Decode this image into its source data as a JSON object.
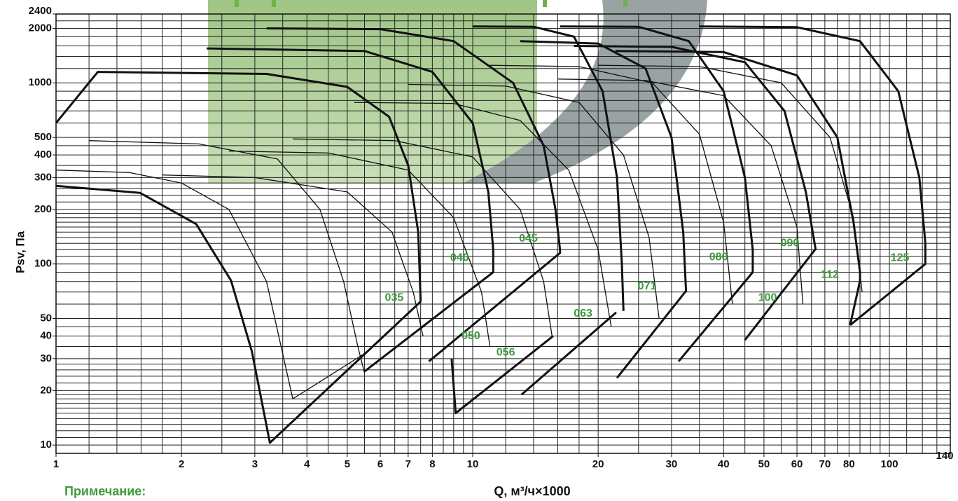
{
  "chart_data": {
    "type": "line",
    "x_label": "Q, м³/ч×1000",
    "y_label": "Psv, Па",
    "note": "Примечание:",
    "log_x": true,
    "log_y": true,
    "grid": true,
    "xlim": [
      1,
      140
    ],
    "ylim": [
      9,
      2400
    ],
    "xticks": [
      1,
      2,
      3,
      4,
      5,
      6,
      7,
      8,
      10,
      20,
      30,
      40,
      50,
      60,
      70,
      80,
      100,
      140
    ],
    "yticks": [
      10,
      20,
      30,
      40,
      50,
      100,
      200,
      300,
      400,
      500,
      1000,
      2000,
      2400
    ],
    "x_grid": [
      1,
      1.2,
      1.4,
      1.6,
      1.8,
      2,
      2.5,
      3,
      3.5,
      4,
      4.5,
      5,
      5.5,
      6,
      6.5,
      7,
      7.5,
      8,
      8.5,
      9,
      9.5,
      10,
      12,
      14,
      16,
      18,
      20,
      25,
      30,
      35,
      40,
      45,
      50,
      55,
      60,
      65,
      70,
      75,
      80,
      85,
      90,
      95,
      100,
      110,
      120,
      130,
      140
    ],
    "y_grid": [
      10,
      11,
      12,
      13,
      14,
      15,
      16,
      17,
      18,
      19,
      20,
      22,
      24,
      26,
      28,
      30,
      35,
      40,
      45,
      50,
      60,
      70,
      80,
      90,
      100,
      110,
      120,
      130,
      140,
      150,
      160,
      170,
      180,
      190,
      200,
      220,
      240,
      260,
      280,
      300,
      350,
      400,
      450,
      500,
      600,
      700,
      800,
      900,
      1000,
      1200,
      1400,
      1600,
      1800,
      2000,
      2200,
      2400
    ],
    "line_color": "#111111",
    "label_color": "#3e9a3e",
    "series": [
      {
        "weight": "bold",
        "x": [
          1,
          1.59,
          2.17,
          2.63,
          2.95,
          3.26,
          7.5
        ],
        "y": [
          270,
          247,
          166,
          81,
          33,
          10.3,
          62
        ]
      },
      {
        "weight": "bold",
        "x": [
          1,
          1.26,
          3.2,
          5.0,
          6.3,
          7.0,
          7.4,
          7.5
        ],
        "y": [
          600,
          1150,
          1120,
          950,
          650,
          350,
          150,
          62
        ]
      },
      {
        "weight": "bold",
        "x": [
          2.3,
          5.5,
          8.0,
          10.0,
          10.9,
          11.2,
          11.2,
          5.5
        ],
        "y": [
          1550,
          1500,
          1150,
          600,
          250,
          120,
          90,
          25.5
        ]
      },
      {
        "weight": "bold",
        "x": [
          3.2,
          6.0,
          9.0,
          12.5,
          14.8,
          15.8,
          16.2,
          16.2,
          7.85
        ],
        "y": [
          2000,
          1980,
          1700,
          1000,
          450,
          200,
          120,
          115,
          29
        ]
      },
      {
        "weight": "bold",
        "x": [
          8.9,
          9.1,
          15.6
        ],
        "y": [
          30,
          15,
          40
        ]
      },
      {
        "weight": "bold",
        "x": [
          13.1,
          22.1
        ],
        "y": [
          19,
          54
        ]
      },
      {
        "weight": "bold",
        "x": [
          10,
          14,
          17.5,
          20.5,
          22.2,
          22.8,
          23
        ],
        "y": [
          2050,
          2040,
          1800,
          900,
          300,
          100,
          55
        ]
      },
      {
        "weight": "bold",
        "x": [
          13,
          20,
          26,
          30,
          32,
          32.5,
          22.2
        ],
        "y": [
          1700,
          1650,
          1200,
          500,
          150,
          71,
          23.5
        ]
      },
      {
        "weight": "bold",
        "x": [
          16.2,
          25,
          33,
          40,
          45,
          47,
          47,
          31.2
        ],
        "y": [
          2050,
          2040,
          1700,
          900,
          300,
          120,
          90,
          29
        ]
      },
      {
        "weight": "bold",
        "x": [
          17.5,
          30,
          45,
          56,
          63,
          66.5,
          45
        ],
        "y": [
          1600,
          1580,
          1300,
          700,
          250,
          121,
          38
        ]
      },
      {
        "weight": "bold",
        "x": [
          22,
          40,
          60,
          75,
          82,
          85,
          85,
          80.5
        ],
        "y": [
          1500,
          1480,
          1100,
          500,
          170,
          90,
          81,
          46
        ]
      },
      {
        "weight": "bold",
        "x": [
          35,
          60,
          85,
          105,
          118,
          122,
          122,
          80.5
        ],
        "y": [
          2050,
          2030,
          1700,
          900,
          300,
          130,
          100,
          46
        ]
      },
      {
        "weight": "thin",
        "x": [
          1,
          1.5,
          2.0,
          2.6,
          3.2,
          3.7,
          5.5
        ],
        "y": [
          330,
          320,
          280,
          200,
          80,
          18,
          32
        ]
      },
      {
        "weight": "thin",
        "x": [
          1.2,
          2.2,
          3.4,
          4.3,
          4.9,
          5.3,
          5.5
        ],
        "y": [
          480,
          460,
          380,
          200,
          80,
          35,
          25
        ]
      },
      {
        "weight": "thin",
        "x": [
          1.8,
          3.0,
          5.0,
          6.4,
          7.2,
          7.6
        ],
        "y": [
          310,
          300,
          250,
          150,
          70,
          40
        ]
      },
      {
        "weight": "thin",
        "x": [
          2.6,
          4.5,
          7.0,
          9.0,
          10.5,
          11.0
        ],
        "y": [
          420,
          410,
          330,
          180,
          70,
          35
        ]
      },
      {
        "weight": "thin",
        "x": [
          3.7,
          6.5,
          10,
          13,
          14.8,
          15.5
        ],
        "y": [
          490,
          480,
          390,
          200,
          80,
          40
        ]
      },
      {
        "weight": "thin",
        "x": [
          5.2,
          9.0,
          13,
          17,
          20,
          21.5
        ],
        "y": [
          780,
          770,
          620,
          330,
          120,
          45
        ]
      },
      {
        "weight": "thin",
        "x": [
          7.0,
          12,
          18,
          23,
          26.5,
          28
        ],
        "y": [
          980,
          960,
          780,
          400,
          140,
          50
        ]
      },
      {
        "weight": "thin",
        "x": [
          11,
          18,
          27,
          35,
          40,
          42
        ],
        "y": [
          1250,
          1230,
          1000,
          520,
          170,
          60
        ]
      },
      {
        "weight": "thin",
        "x": [
          16,
          26,
          40,
          52,
          60,
          62
        ],
        "y": [
          1050,
          1030,
          850,
          450,
          160,
          60
        ]
      },
      {
        "weight": "thin",
        "x": [
          20,
          35,
          55,
          72,
          82,
          86
        ],
        "y": [
          1250,
          1230,
          1000,
          500,
          180,
          70
        ]
      }
    ],
    "annotations": [
      {
        "text": "035",
        "x": 6.48,
        "y": 65
      },
      {
        "text": "040",
        "x": 9.3,
        "y": 108
      },
      {
        "text": "045",
        "x": 13.6,
        "y": 138
      },
      {
        "text": "050",
        "x": 9.9,
        "y": 40
      },
      {
        "text": "056",
        "x": 12.0,
        "y": 32.4
      },
      {
        "text": "063",
        "x": 18.4,
        "y": 53
      },
      {
        "text": "071",
        "x": 26.2,
        "y": 75
      },
      {
        "text": "080",
        "x": 38.9,
        "y": 109
      },
      {
        "text": "090",
        "x": 57.7,
        "y": 130
      },
      {
        "text": "100",
        "x": 51,
        "y": 65
      },
      {
        "text": "112",
        "x": 72,
        "y": 87
      },
      {
        "text": "125",
        "x": 106,
        "y": 108
      }
    ]
  }
}
